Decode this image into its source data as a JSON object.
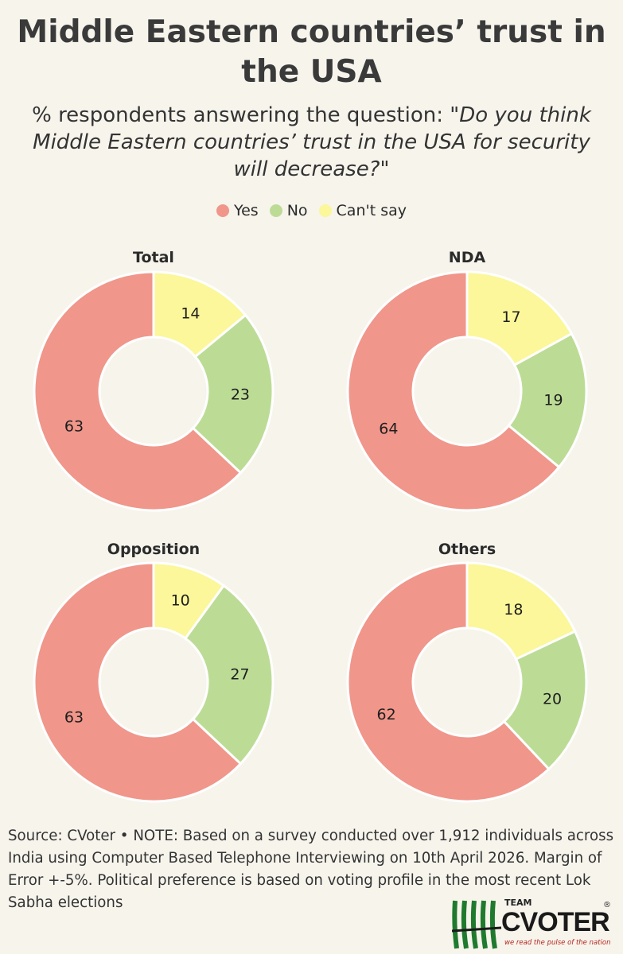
{
  "title": "Middle Eastern countries’ trust in the USA",
  "subtitle_prefix": "% respondents answering the question: ",
  "subtitle_question": "\"Do you think Middle Eastern countries’ trust in the USA for security will decrease?\"",
  "legend": [
    {
      "label": "Yes",
      "color": "#f0968a"
    },
    {
      "label": "No",
      "color": "#bcdc96"
    },
    {
      "label": "Can't say",
      "color": "#fbf79a"
    }
  ],
  "chart_data": [
    {
      "type": "pie",
      "subtype": "donut",
      "title": "Total",
      "categories": [
        "Yes",
        "No",
        "Can't say"
      ],
      "values": [
        63,
        23,
        14
      ]
    },
    {
      "type": "pie",
      "subtype": "donut",
      "title": "NDA",
      "categories": [
        "Yes",
        "No",
        "Can't say"
      ],
      "values": [
        64,
        19,
        17
      ]
    },
    {
      "type": "pie",
      "subtype": "donut",
      "title": "Opposition",
      "categories": [
        "Yes",
        "No",
        "Can't say"
      ],
      "values": [
        63,
        27,
        10
      ]
    },
    {
      "type": "pie",
      "subtype": "donut",
      "title": "Others",
      "categories": [
        "Yes",
        "No",
        "Can't say"
      ],
      "values": [
        62,
        20,
        18
      ]
    }
  ],
  "footer": "Source: CVoter • NOTE: Based on a survey conducted over 1,912 individuals across India using Computer Based Telephone Interviewing on 10th April 2026. Margin of Error +-5%. Political preference is based on voting profile in the most recent Lok Sabha elections",
  "logo": {
    "team": "TEAM",
    "name": "CVOTER",
    "reg": "®",
    "tagline": "we read the pulse of the nation"
  }
}
